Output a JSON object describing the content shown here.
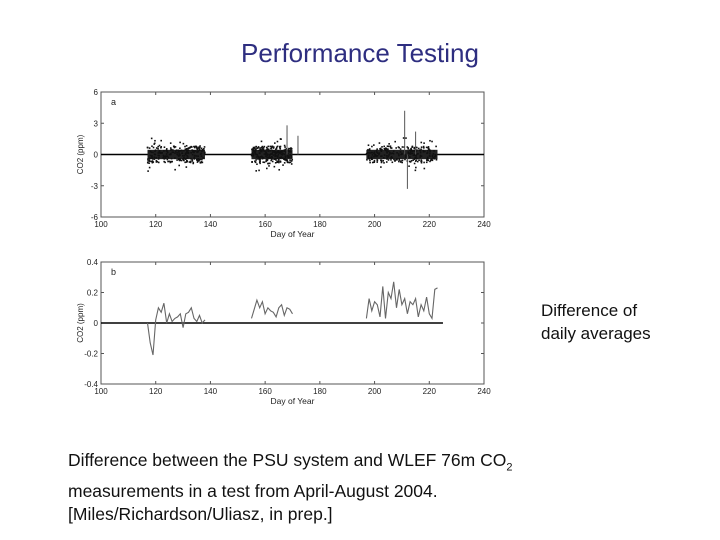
{
  "slide": {
    "title": "Performance Testing",
    "note_line1": "Difference of",
    "note_line2": "daily averages",
    "caption_line1_pre": "Difference between the PSU system and WLEF 76m CO",
    "caption_line1_sub": "2",
    "caption_line2": "measurements in a test from April-August 2004.",
    "caption_line3": "[Miles/Richardson/Uliasz, in prep.]"
  },
  "chart_data": [
    {
      "type": "scatter",
      "panel_label": "a",
      "xlabel": "Day of Year",
      "ylabel": "CO2 (ppm)",
      "xlim": [
        100,
        240
      ],
      "ylim": [
        -6,
        6
      ],
      "xticks": [
        100,
        120,
        140,
        160,
        180,
        200,
        220,
        240
      ],
      "yticks": [
        6,
        3,
        0,
        -3,
        -6
      ],
      "segments": [
        [
          117,
          138
        ],
        [
          155,
          170
        ],
        [
          197,
          223
        ]
      ],
      "spikes": [
        [
          168,
          2.8
        ],
        [
          172,
          1.8
        ],
        [
          211,
          4.2
        ],
        [
          212,
          -3.3
        ],
        [
          215,
          2.2
        ]
      ],
      "zero_line": true,
      "grid": false
    },
    {
      "type": "line",
      "panel_label": "b",
      "xlabel": "Day of Year",
      "ylabel": "CO2 (ppm)",
      "xlim": [
        100,
        240
      ],
      "ylim": [
        -0.4,
        0.4
      ],
      "xticks": [
        100,
        120,
        140,
        160,
        180,
        200,
        220,
        240
      ],
      "yticks": [
        0.4,
        0.2,
        0,
        -0.2,
        -0.4
      ],
      "zero_line": true,
      "zero_line_xlim": [
        100,
        225
      ],
      "grid": false,
      "series": [
        {
          "x": [
            117,
            118,
            119,
            120,
            121,
            122,
            123,
            124,
            125,
            126,
            127,
            128,
            129,
            130,
            131,
            132,
            133,
            134,
            135,
            136,
            137,
            138
          ],
          "values": [
            0.0,
            -0.13,
            -0.21,
            0.02,
            0.1,
            0.07,
            0.13,
            0.0,
            0.06,
            0.01,
            0.03,
            0.04,
            0.06,
            -0.03,
            0.06,
            0.07,
            0.1,
            0.03,
            0.01,
            0.05,
            0.0,
            0.02
          ]
        },
        {
          "x": [
            155,
            156,
            157,
            158,
            159,
            160,
            161,
            162,
            163,
            164,
            165,
            166,
            167,
            168,
            169,
            170
          ],
          "values": [
            0.03,
            0.09,
            0.15,
            0.1,
            0.14,
            0.06,
            0.1,
            0.08,
            0.07,
            0.04,
            0.1,
            0.12,
            0.05,
            0.1,
            0.09,
            0.06
          ]
        },
        {
          "x": [
            197,
            198,
            199,
            200,
            201,
            202,
            203,
            204,
            205,
            206,
            207,
            208,
            209,
            210,
            211,
            212,
            213,
            214,
            215,
            216,
            217,
            218,
            219,
            220,
            221,
            222,
            223
          ],
          "values": [
            0.03,
            0.16,
            0.08,
            0.14,
            0.12,
            0.04,
            0.24,
            0.03,
            0.2,
            0.16,
            0.27,
            0.1,
            0.22,
            0.12,
            0.16,
            0.06,
            0.14,
            0.12,
            0.16,
            0.04,
            0.12,
            0.08,
            0.17,
            0.06,
            0.03,
            0.22,
            0.23
          ]
        }
      ]
    }
  ]
}
